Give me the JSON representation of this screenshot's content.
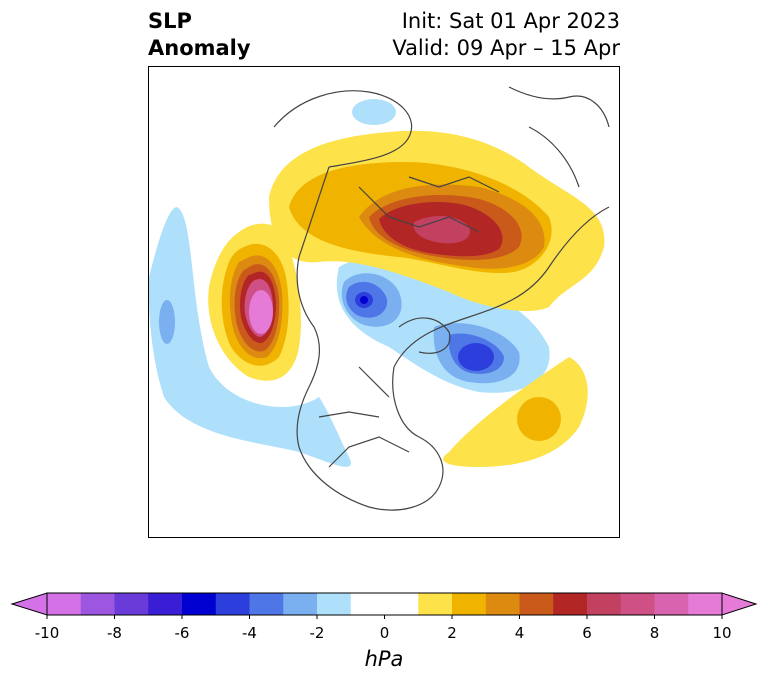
{
  "title": {
    "line1": "SLP",
    "line2": "Anomaly"
  },
  "info": {
    "init": "Init: Sat 01 Apr 2023",
    "valid": "Valid: 09 Apr – 15 Apr"
  },
  "map": {
    "projection": "polar stereographic",
    "region": "Northern Hemisphere"
  },
  "colorbar": {
    "units": "hPa",
    "ticks": [
      "-10",
      "-8",
      "-6",
      "-4",
      "-2",
      "0",
      "2",
      "4",
      "6",
      "8",
      "10"
    ],
    "tick_values": [
      -10,
      -8,
      -6,
      -4,
      -2,
      0,
      2,
      4,
      6,
      8,
      10
    ],
    "colors": [
      "#d571e6",
      "#9c56e0",
      "#6a3bd8",
      "#3a1ed6",
      "#0000d0",
      "#2c3fdc",
      "#4f76e6",
      "#7aaff0",
      "#aee0fb",
      "#ffffff",
      "#ffffff",
      "#fde24a",
      "#f0b400",
      "#dc8a10",
      "#c95a1a",
      "#b22626",
      "#c24060",
      "#cf5085",
      "#d864b0",
      "#e57ad7"
    ],
    "extend": "both"
  },
  "chart_data": {
    "type": "heatmap",
    "variable": "SLP Anomaly",
    "units": "hPa",
    "levels": [
      -10,
      -9,
      -8,
      -7,
      -6,
      -5,
      -4,
      -3,
      -2,
      -1,
      0,
      1,
      2,
      3,
      4,
      5,
      6,
      7,
      8,
      9,
      10
    ]
  }
}
